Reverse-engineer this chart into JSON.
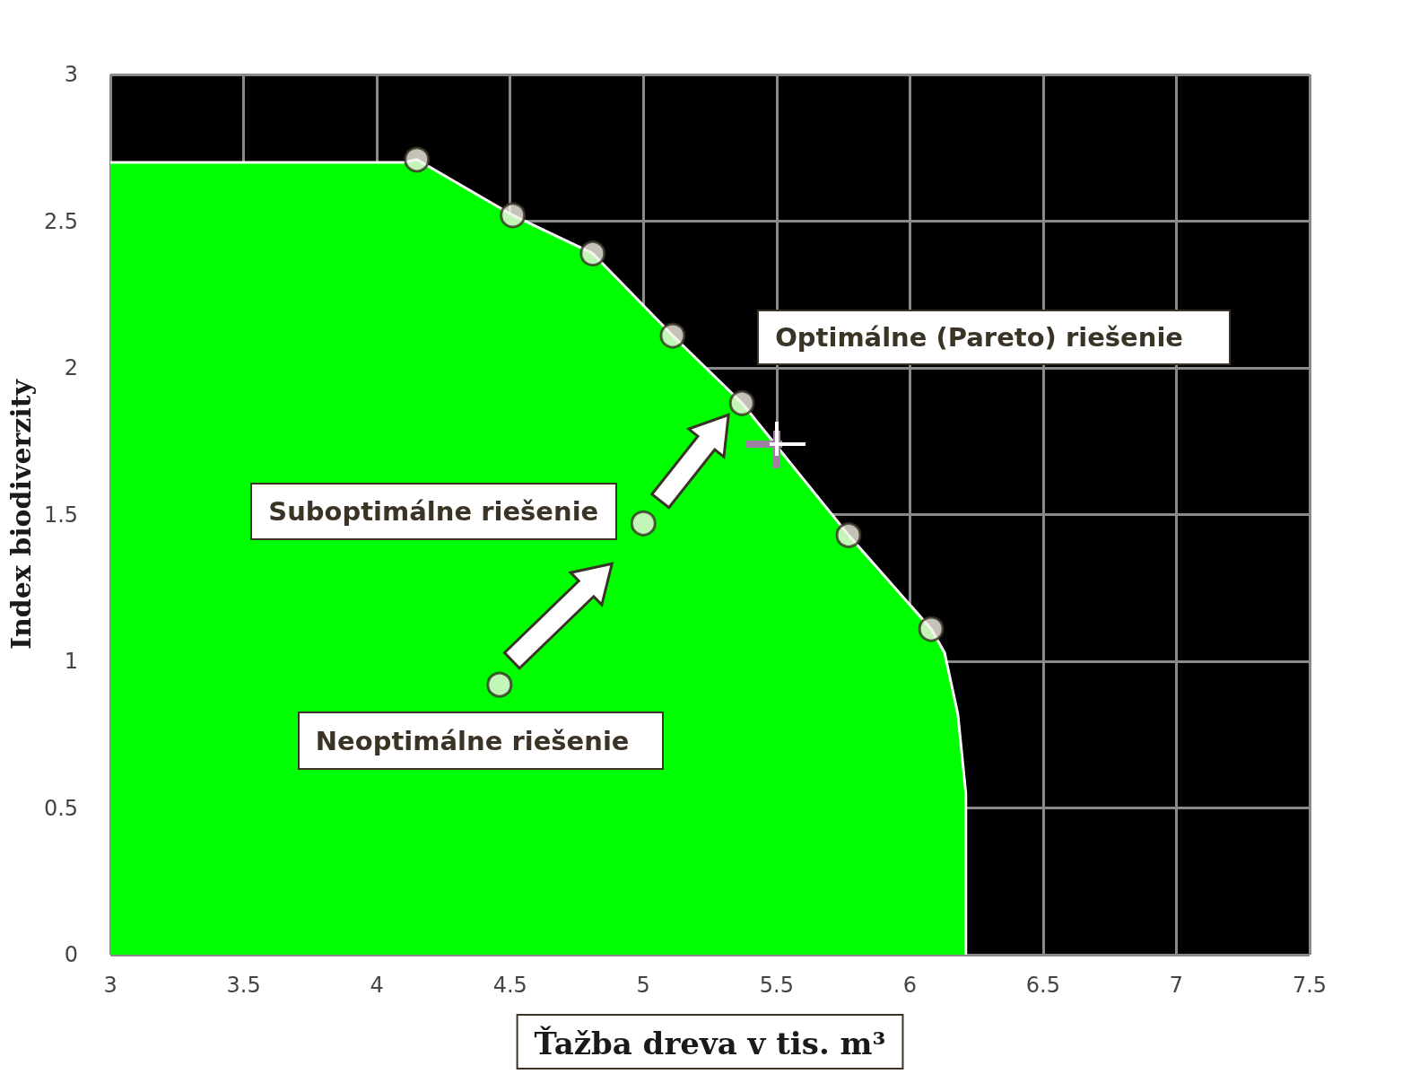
{
  "chart_data": {
    "type": "area",
    "xlabel": "Ťažba dreva v tis. m³",
    "ylabel": "Index biodiverzity",
    "annotations": [
      {
        "text": "Optimálne (Pareto) riešenie",
        "x": 5.37,
        "y": 1.88
      },
      {
        "text": "Suboptimálne riešenie",
        "x": 5.0,
        "y": 1.47
      },
      {
        "text": "Neoptimálne riešenie",
        "x": 4.46,
        "y": 0.92
      }
    ],
    "xlim": [
      3,
      7.5
    ],
    "xticks": [
      3,
      3.5,
      4,
      4.5,
      5,
      5.5,
      6,
      6.5,
      7,
      7.5
    ],
    "ylim": [
      0,
      3
    ],
    "yticks": [
      0,
      0.5,
      1,
      1.5,
      2,
      2.5,
      3
    ],
    "grid": true,
    "series": [
      {
        "color": "#00ff00",
        "x": [
          3,
          4.1,
          4.15,
          4.51,
          4.81,
          5.11,
          5.37,
          5.77,
          6.08,
          6.13,
          6.18,
          6.21,
          6.21
        ],
        "values": [
          2.7,
          2.7,
          2.71,
          2.52,
          2.39,
          2.11,
          1.88,
          1.43,
          1.11,
          1.03,
          0.82,
          0.55,
          0
        ]
      },
      {
        "type": "scatter",
        "marker": "circle",
        "color": "#3a3326",
        "x": [
          4.15,
          4.51,
          4.81,
          5.11,
          5.37,
          5.77,
          6.08
        ],
        "values": [
          2.71,
          2.52,
          2.39,
          2.11,
          1.88,
          1.43,
          1.11
        ]
      },
      {
        "type": "scatter",
        "marker": "circle",
        "color": "#3a3326",
        "x": [
          4.46,
          5.0
        ],
        "values": [
          0.92,
          1.47
        ]
      }
    ]
  }
}
